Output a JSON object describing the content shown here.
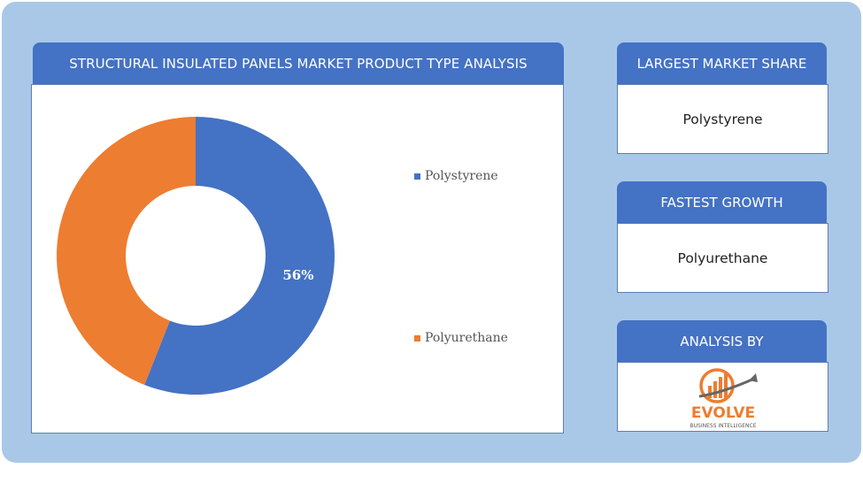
{
  "chart_title": "STRUCTURAL INSULATED PANELS MARKET PRODUCT TYPE ANALYSIS",
  "side_panels": [
    {
      "header": "LARGEST MARKET SHARE",
      "value": "Polystyrene"
    },
    {
      "header": "FASTEST GROWTH",
      "value": "Polyurethane"
    },
    {
      "header": "ANALYSIS BY",
      "logo_text": "EVOLVE",
      "logo_subtext": "BUSINESS INTELLIGENCE"
    }
  ],
  "chart_data": {
    "type": "pie",
    "donut": true,
    "title": "STRUCTURAL INSULATED PANELS MARKET PRODUCT TYPE ANALYSIS",
    "categories": [
      "Polystyrene",
      "Polyurethane"
    ],
    "values": [
      56,
      44
    ],
    "colors": [
      "#4472c4",
      "#ed7d31"
    ],
    "data_labels": [
      "56%",
      ""
    ],
    "legend": "right"
  },
  "colors": {
    "panel_background": "#a9c8e8",
    "header_background": "#4472c4",
    "logo_orange": "#ed7d31",
    "logo_gray": "#666666"
  }
}
